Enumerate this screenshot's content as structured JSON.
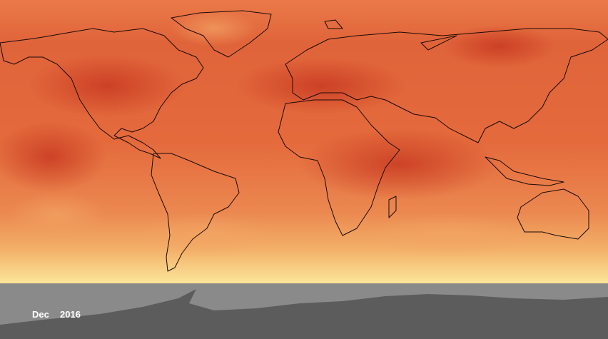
{
  "caption": {
    "month": "Dec",
    "year": "2016"
  }
}
